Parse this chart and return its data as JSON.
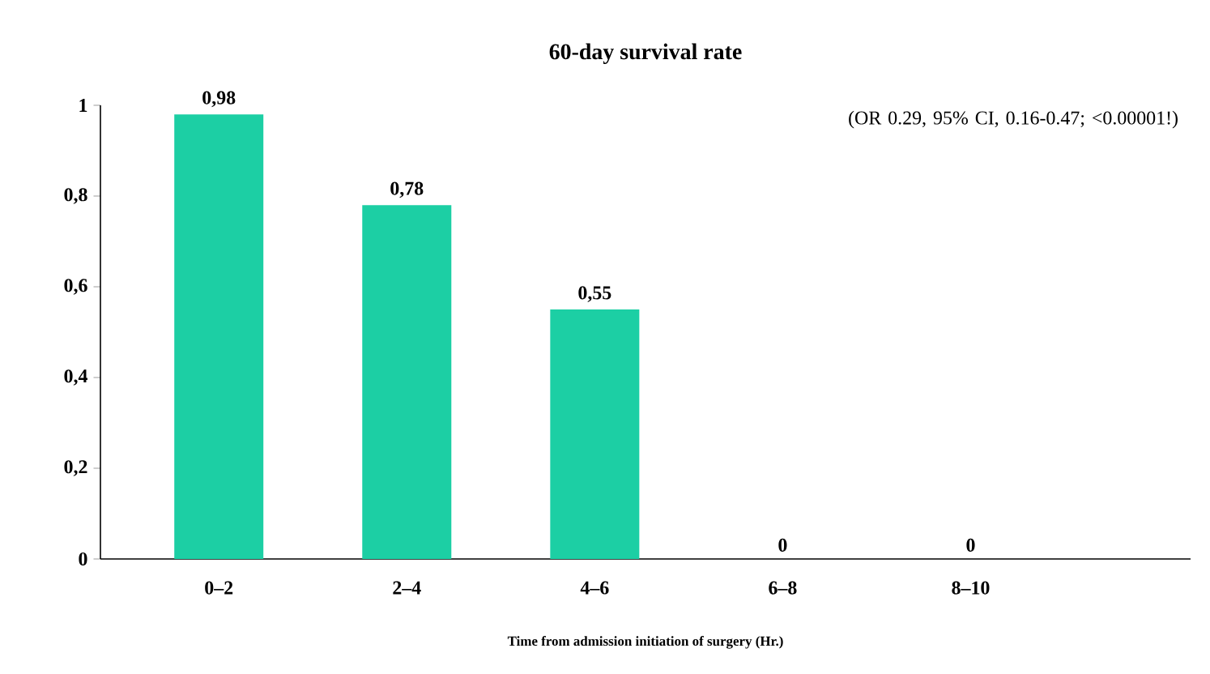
{
  "chart_data": {
    "type": "bar",
    "title": "60-day survival rate",
    "xlabel": "Time from admission initiation of surgery (Hr.)",
    "categories": [
      "0–2",
      "2–4",
      "4–6",
      "6–8",
      "8–10"
    ],
    "values": [
      0.98,
      0.78,
      0.55,
      0,
      0
    ],
    "value_labels": [
      "0,98",
      "0,78",
      "0,55",
      "0",
      "0"
    ],
    "color": "#1ccfa4",
    "ylim": [
      0,
      1
    ],
    "yticks": [
      0,
      {
        "value": 0.2,
        "label": "0,2"
      },
      {
        "value": 0.4,
        "label": "0,4"
      },
      {
        "value": 0.6,
        "label": "0,6"
      },
      {
        "value": 0.8,
        "label": "0,8"
      },
      1
    ],
    "grid": false,
    "annotations": [
      "(OR 0.29, 95% CI, 0.16-0.47; <0.00001!)"
    ]
  }
}
